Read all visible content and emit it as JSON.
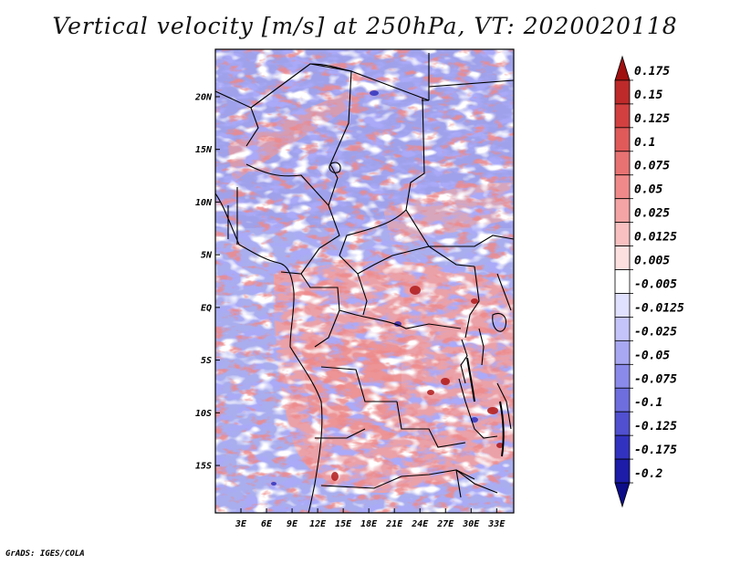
{
  "title": "Vertical velocity [m/s] at 250hPa, VT: 2020020118",
  "footer": "GrADS: IGES/COLA",
  "map": {
    "lon_range": [
      0,
      35
    ],
    "lat_range": [
      -19.5,
      24.5
    ],
    "lat_ticks": [
      {
        "value": 20,
        "label": "20N"
      },
      {
        "value": 15,
        "label": "15N"
      },
      {
        "value": 10,
        "label": "10N"
      },
      {
        "value": 5,
        "label": "5N"
      },
      {
        "value": 0,
        "label": "EQ"
      },
      {
        "value": -5,
        "label": "5S"
      },
      {
        "value": -10,
        "label": "10S"
      },
      {
        "value": -15,
        "label": "15S"
      }
    ],
    "lon_ticks": [
      {
        "value": 3,
        "label": "3E"
      },
      {
        "value": 6,
        "label": "6E"
      },
      {
        "value": 9,
        "label": "9E"
      },
      {
        "value": 12,
        "label": "12E"
      },
      {
        "value": 15,
        "label": "15E"
      },
      {
        "value": 18,
        "label": "18E"
      },
      {
        "value": 21,
        "label": "21E"
      },
      {
        "value": 24,
        "label": "24E"
      },
      {
        "value": 27,
        "label": "27E"
      },
      {
        "value": 30,
        "label": "30E"
      },
      {
        "value": 33,
        "label": "33E"
      }
    ]
  },
  "colorbar": {
    "levels": [
      "0.175",
      "0.15",
      "0.125",
      "0.1",
      "0.075",
      "0.05",
      "0.025",
      "0.0125",
      "0.005",
      "-0.005",
      "-0.0125",
      "-0.025",
      "-0.05",
      "-0.075",
      "-0.1",
      "-0.125",
      "-0.175",
      "-0.2"
    ],
    "colors": [
      "#a01010",
      "#be2a2a",
      "#d24040",
      "#e05a5a",
      "#e87272",
      "#f08a8a",
      "#f4a4a4",
      "#f8c0c0",
      "#fce0e0",
      "#ffffff",
      "#e0e0ff",
      "#c4c4fa",
      "#a8a8f2",
      "#8a8aea",
      "#6e6ede",
      "#5050d0",
      "#3232c0",
      "#1c1ca8",
      "#0c0c88"
    ]
  }
}
